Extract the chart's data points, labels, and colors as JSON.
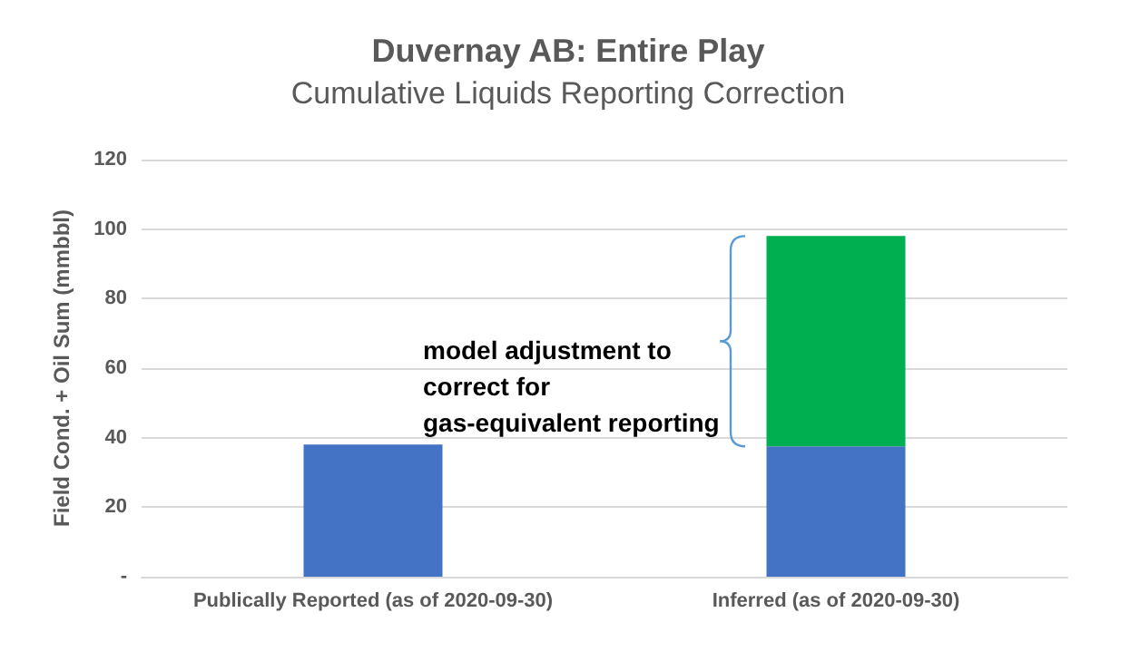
{
  "chart_data": {
    "type": "bar",
    "title": "Duvernay AB: Entire Play",
    "subtitle": "Cumulative Liquids Reporting Correction",
    "ylabel": "Field Cond. + Oil Sum (mmbbl)",
    "categories": [
      "Publically Reported (as of 2020-09-30)",
      "Inferred (as of 2020-09-30)"
    ],
    "series": [
      {
        "color": "#4472c4",
        "values": [
          38,
          37.5
        ]
      },
      {
        "color": "#00b050",
        "values": [
          null,
          60.5
        ]
      }
    ],
    "stacked": true,
    "ylim": [
      0,
      120
    ],
    "yticks": [
      {
        "value": 0,
        "label": "-"
      },
      20,
      40,
      60,
      80,
      100,
      120
    ],
    "grid": "y",
    "annotations": [
      "model adjustment to correct for gas-equivalent reporting"
    ]
  }
}
